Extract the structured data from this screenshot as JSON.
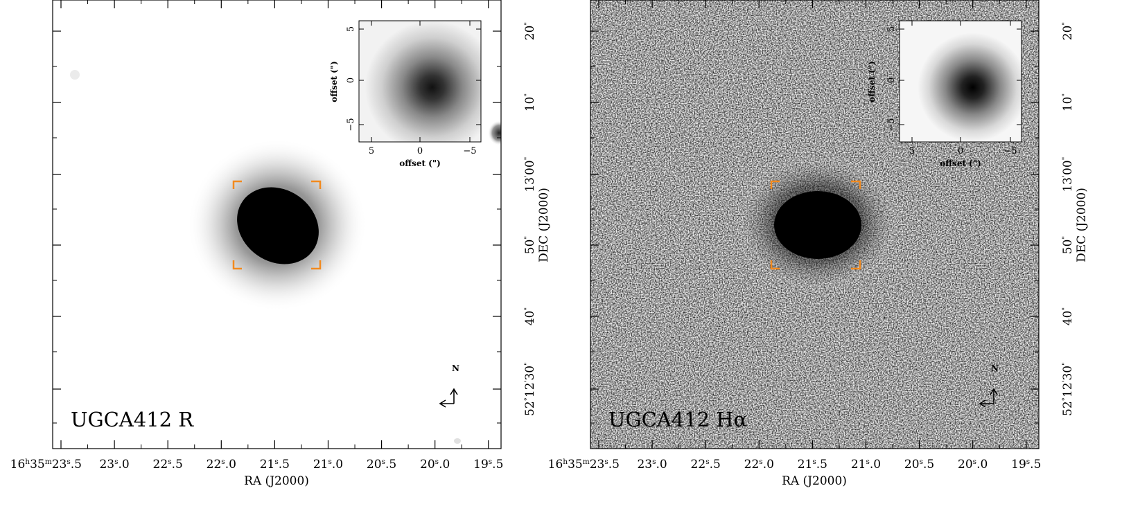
{
  "panels": [
    {
      "title": "UGCA412  R",
      "compass": {
        "north": "N"
      },
      "ra_label": "RA (J2000)",
      "dec_label": "DEC (J2000)",
      "ra_ticks": [
        "16h35m23s.5",
        "23s.0",
        "22s.5",
        "22s.0",
        "21s.5",
        "21s.0",
        "20s.5",
        "20s.0",
        "19s.5"
      ],
      "dec_ticks": [
        "20\"",
        "10\"",
        "13'00\"",
        "50\"",
        "40\"",
        "52°12'30\""
      ],
      "inset": {
        "x_label": "offset (\")",
        "y_label": "offset (\")",
        "x_ticks": [
          "5",
          "0",
          "−5"
        ],
        "y_ticks": [
          "5",
          "0",
          "−5"
        ]
      }
    },
    {
      "title": "UGCA412  Hα",
      "compass": {
        "north": "N"
      },
      "ra_label": "RA (J2000)",
      "dec_label": "DEC (J2000)",
      "ra_ticks": [
        "16h35m23s.5",
        "23s.0",
        "22s.5",
        "22s.0",
        "21s.5",
        "21s.0",
        "20s.5",
        "20s.0",
        "19s.5"
      ],
      "dec_ticks": [
        "20\"",
        "10\"",
        "13'00\"",
        "50\"",
        "40\"",
        "52°12'30\""
      ],
      "inset": {
        "x_label": "offset (\")",
        "y_label": "offset (\")",
        "x_ticks": [
          "5",
          "0",
          "−5"
        ],
        "y_ticks": [
          "5",
          "0",
          "−5"
        ]
      }
    }
  ],
  "colors": {
    "bracket": "#f28a1e",
    "axis": "#000000"
  }
}
